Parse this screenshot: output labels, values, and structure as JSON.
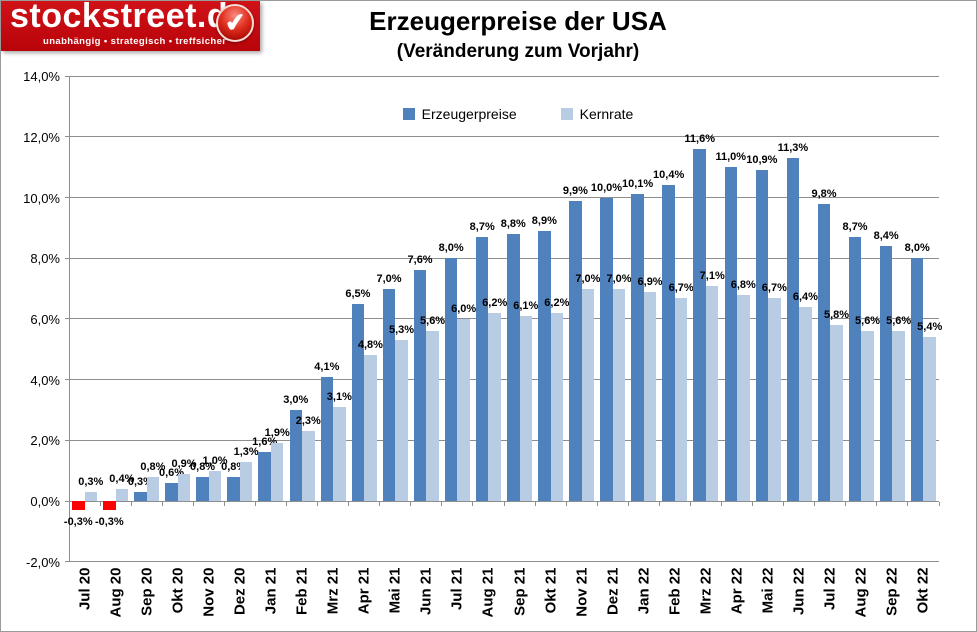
{
  "logo": {
    "name": "stockstreet.de",
    "tagline": "unabhängig • strategisch • treffsicher",
    "badge_icon": "check-icon",
    "check_glyph": "✔",
    "bg_color": "#c20910"
  },
  "header": {
    "title": "Erzeugerpreise der USA",
    "subtitle": "(Veränderung zum Vorjahr)"
  },
  "chart_data": {
    "type": "bar",
    "title": "Erzeugerpreise der USA (Veränderung zum Vorjahr)",
    "grid": true,
    "legend_position": "top-center",
    "ylim": [
      -2,
      14
    ],
    "ytick_step": 2,
    "yticks": [
      {
        "value": 14,
        "label": "14,0%"
      },
      {
        "value": 12,
        "label": "12,0%"
      },
      {
        "value": 10,
        "label": "10,0%"
      },
      {
        "value": 8,
        "label": "8,0%"
      },
      {
        "value": 6,
        "label": "6,0%"
      },
      {
        "value": 4,
        "label": "4,0%"
      },
      {
        "value": 2,
        "label": "2,0%"
      },
      {
        "value": 0,
        "label": "0,0%"
      },
      {
        "value": -2,
        "label": "-2,0%"
      }
    ],
    "categories": [
      "Jul 20",
      "Aug 20",
      "Sep 20",
      "Okt 20",
      "Nov 20",
      "Dez 20",
      "Jan 21",
      "Feb 21",
      "Mrz 21",
      "Apr 21",
      "Mai 21",
      "Jun 21",
      "Jul 21",
      "Aug 21",
      "Sep 21",
      "Okt 21",
      "Nov 21",
      "Dez 21",
      "Jan 22",
      "Feb 22",
      "Mrz 22",
      "Apr 22",
      "Mai 22",
      "Jun 22",
      "Jul 22",
      "Aug 22",
      "Sep 22",
      "Okt 22"
    ],
    "series": [
      {
        "name": "Erzeugerpreise",
        "color": "#4f81bd",
        "negative_color": "#ff0000",
        "values": [
          -0.3,
          -0.3,
          0.3,
          0.6,
          0.8,
          0.8,
          1.6,
          3.0,
          4.1,
          6.5,
          7.0,
          7.6,
          8.0,
          8.7,
          8.8,
          8.9,
          9.9,
          10.0,
          10.1,
          10.4,
          11.6,
          11.0,
          10.9,
          11.3,
          9.8,
          8.7,
          8.4,
          8.0
        ],
        "labels": [
          "-0,3%",
          "-0,3%",
          "0,3%",
          "0,6%",
          "0,8%",
          "0,8%",
          "1,6%",
          "3,0%",
          "4,1%",
          "6,5%",
          "7,0%",
          "7,6%",
          "8,0%",
          "8,7%",
          "8,8%",
          "8,9%",
          "9,9%",
          "10,0%",
          "10,1%",
          "10,4%",
          "11,6%",
          "11,0%",
          "10,9%",
          "11,3%",
          "9,8%",
          "8,7%",
          "8,4%",
          "8,0%"
        ]
      },
      {
        "name": "Kernrate",
        "color": "#b8cce4",
        "values": [
          0.3,
          0.4,
          0.8,
          0.9,
          1.0,
          1.3,
          1.9,
          2.3,
          3.1,
          4.8,
          5.3,
          5.6,
          6.0,
          6.2,
          6.1,
          6.2,
          7.0,
          7.0,
          6.9,
          6.7,
          7.1,
          6.8,
          6.7,
          6.4,
          5.8,
          5.6,
          5.6,
          5.4
        ],
        "labels": [
          "0,3%",
          "0,4%",
          "0,8%",
          "0,9%",
          "1,0%",
          "1,3%",
          "1,9%",
          "2,3%",
          "3,1%",
          "4,8%",
          "5,3%",
          "5,6%",
          "6,0%",
          "6,2%",
          "6,1%",
          "6,2%",
          "7,0%",
          "7,0%",
          "6,9%",
          "6,7%",
          "7,1%",
          "6,8%",
          "6,7%",
          "6,4%",
          "5,8%",
          "5,6%",
          "5,6%",
          "5,4%"
        ]
      }
    ]
  }
}
